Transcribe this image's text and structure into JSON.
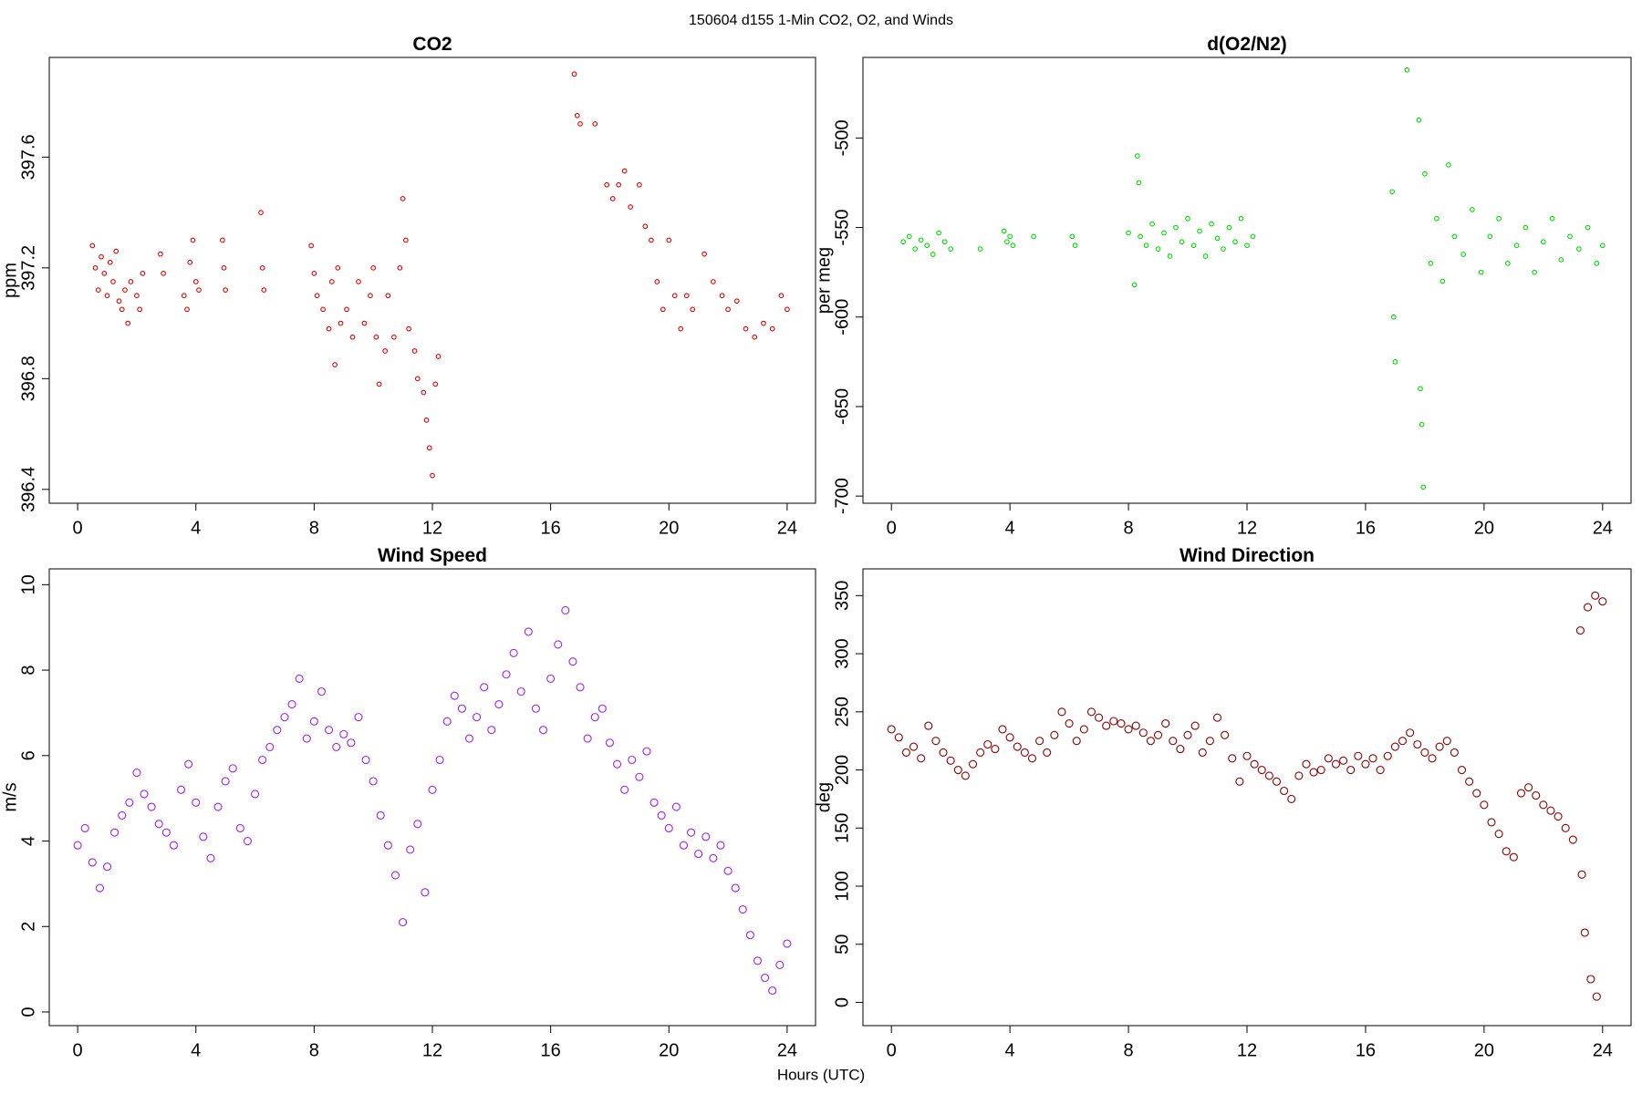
{
  "title": "150604   d155   1-Min CO2, O2, and Winds",
  "xlabel": "Hours (UTC)",
  "chart_data": [
    {
      "type": "scatter",
      "title": "CO2",
      "ylabel": "ppm",
      "color": "#e00000",
      "x": [
        0.5,
        0.6,
        0.7,
        0.8,
        0.9,
        1.0,
        1.1,
        1.2,
        1.3,
        1.4,
        1.5,
        1.6,
        1.7,
        1.8,
        2.0,
        2.1,
        2.2,
        2.8,
        2.9,
        3.6,
        3.7,
        3.8,
        3.9,
        4.0,
        4.1,
        4.9,
        4.95,
        5.0,
        6.2,
        6.25,
        6.3,
        7.9,
        8.0,
        8.1,
        8.3,
        8.5,
        8.6,
        8.7,
        8.8,
        8.9,
        9.1,
        9.3,
        9.5,
        9.7,
        9.9,
        10.0,
        10.1,
        10.2,
        10.4,
        10.5,
        10.7,
        10.9,
        11.0,
        11.1,
        11.2,
        11.4,
        11.5,
        11.7,
        11.8,
        11.9,
        12.0,
        12.1,
        12.2,
        16.8,
        16.9,
        17.0,
        17.5,
        17.9,
        18.1,
        18.3,
        18.5,
        18.7,
        19.0,
        19.2,
        19.4,
        19.6,
        19.8,
        20.0,
        20.2,
        20.4,
        20.6,
        20.8,
        21.2,
        21.5,
        21.8,
        22.0,
        22.3,
        22.6,
        22.9,
        23.2,
        23.5,
        23.8,
        24.0
      ],
      "values": [
        397.28,
        397.2,
        397.12,
        397.24,
        397.18,
        397.1,
        397.22,
        397.15,
        397.26,
        397.08,
        397.05,
        397.12,
        397.0,
        397.15,
        397.1,
        397.05,
        397.18,
        397.25,
        397.18,
        397.1,
        397.05,
        397.22,
        397.3,
        397.15,
        397.12,
        397.3,
        397.2,
        397.12,
        397.4,
        397.2,
        397.12,
        397.28,
        397.18,
        397.1,
        397.05,
        396.98,
        397.15,
        396.85,
        397.2,
        397.0,
        397.05,
        396.95,
        397.15,
        397.0,
        397.1,
        397.2,
        396.95,
        396.78,
        396.9,
        397.1,
        396.95,
        397.2,
        397.45,
        397.3,
        396.98,
        396.9,
        396.8,
        396.75,
        396.65,
        396.55,
        396.45,
        396.78,
        396.88,
        397.9,
        397.75,
        397.72,
        397.72,
        397.5,
        397.45,
        397.5,
        397.55,
        397.42,
        397.5,
        397.35,
        397.3,
        397.15,
        397.05,
        397.3,
        397.1,
        396.98,
        397.1,
        397.05,
        397.25,
        397.15,
        397.1,
        397.05,
        397.08,
        396.98,
        396.95,
        397.0,
        396.98,
        397.1,
        397.05
      ],
      "xlim": [
        -0.96,
        24.96
      ],
      "xticks": [
        0,
        4,
        8,
        12,
        16,
        20,
        24
      ],
      "ylim": [
        396.35,
        397.96
      ],
      "yticks": [
        396.4,
        396.8,
        397.2,
        397.6
      ]
    },
    {
      "type": "scatter",
      "title": "d(O2/N2)",
      "ylabel": "per meg",
      "color": "#00dd00",
      "x": [
        0.4,
        0.6,
        0.8,
        1.0,
        1.2,
        1.4,
        1.6,
        1.8,
        2.0,
        3.0,
        3.8,
        3.9,
        4.0,
        4.1,
        4.8,
        6.1,
        6.2,
        8.0,
        8.2,
        8.3,
        8.35,
        8.4,
        8.6,
        8.8,
        9.0,
        9.2,
        9.4,
        9.6,
        9.8,
        10.0,
        10.2,
        10.4,
        10.6,
        10.8,
        11.0,
        11.2,
        11.4,
        11.6,
        11.8,
        12.0,
        12.2,
        16.9,
        16.95,
        17.0,
        17.4,
        17.8,
        17.85,
        17.9,
        17.95,
        18.0,
        18.2,
        18.4,
        18.6,
        18.8,
        19.0,
        19.3,
        19.6,
        19.9,
        20.2,
        20.5,
        20.8,
        21.1,
        21.4,
        21.7,
        22.0,
        22.3,
        22.6,
        22.9,
        23.2,
        23.5,
        23.8,
        24.0
      ],
      "values": [
        -558,
        -555,
        -562,
        -557,
        -560,
        -565,
        -553,
        -558,
        -562,
        -562,
        -552,
        -558,
        -555,
        -560,
        -555,
        -555,
        -560,
        -553,
        -582,
        -510,
        -525,
        -555,
        -560,
        -548,
        -562,
        -553,
        -566,
        -550,
        -558,
        -545,
        -560,
        -552,
        -566,
        -548,
        -556,
        -562,
        -550,
        -558,
        -545,
        -560,
        -555,
        -530,
        -600,
        -625,
        -462,
        -490,
        -640,
        -660,
        -695,
        -520,
        -570,
        -545,
        -580,
        -515,
        -555,
        -565,
        -540,
        -575,
        -555,
        -545,
        -570,
        -560,
        -550,
        -575,
        -558,
        -545,
        -568,
        -555,
        -562,
        -550,
        -570,
        -560
      ],
      "xlim": [
        -0.96,
        24.96
      ],
      "xticks": [
        0,
        4,
        8,
        12,
        16,
        20,
        24
      ],
      "ylim": [
        -704,
        -455
      ],
      "yticks": [
        -700,
        -650,
        -600,
        -550,
        -500
      ]
    },
    {
      "type": "scatter",
      "title": "Wind Speed",
      "ylabel": "m/s",
      "color": "#a020f0",
      "x": [
        0,
        0.25,
        0.5,
        0.75,
        1,
        1.25,
        1.5,
        1.75,
        2,
        2.25,
        2.5,
        2.75,
        3,
        3.25,
        3.5,
        3.75,
        4,
        4.25,
        4.5,
        4.75,
        5,
        5.25,
        5.5,
        5.75,
        6,
        6.25,
        6.5,
        6.75,
        7,
        7.25,
        7.5,
        7.75,
        8,
        8.25,
        8.5,
        8.75,
        9,
        9.25,
        9.5,
        9.75,
        10,
        10.25,
        10.5,
        10.75,
        11,
        11.25,
        11.5,
        11.75,
        12,
        12.25,
        12.5,
        12.75,
        13,
        13.25,
        13.5,
        13.75,
        14,
        14.25,
        14.5,
        14.75,
        15,
        15.25,
        15.5,
        15.75,
        16,
        16.25,
        16.5,
        16.75,
        17,
        17.25,
        17.5,
        17.75,
        18,
        18.25,
        18.5,
        18.75,
        19,
        19.25,
        19.5,
        19.75,
        20,
        20.25,
        20.5,
        20.75,
        21,
        21.25,
        21.5,
        21.75,
        22,
        22.25,
        22.5,
        22.75,
        23,
        23.25,
        23.5,
        23.75,
        24
      ],
      "values": [
        3.9,
        4.3,
        3.5,
        2.9,
        3.4,
        4.2,
        4.6,
        4.9,
        5.6,
        5.1,
        4.8,
        4.4,
        4.2,
        3.9,
        5.2,
        5.8,
        4.9,
        4.1,
        3.6,
        4.8,
        5.4,
        5.7,
        4.3,
        4.0,
        5.1,
        5.9,
        6.2,
        6.6,
        6.9,
        7.2,
        7.8,
        6.4,
        6.8,
        7.5,
        6.6,
        6.2,
        6.5,
        6.3,
        6.9,
        5.9,
        5.4,
        4.6,
        3.9,
        3.2,
        2.1,
        3.8,
        4.4,
        2.8,
        5.2,
        5.9,
        6.8,
        7.4,
        7.1,
        6.4,
        6.9,
        7.6,
        6.6,
        7.2,
        7.9,
        8.4,
        7.5,
        8.9,
        7.1,
        6.6,
        7.8,
        8.6,
        9.4,
        8.2,
        7.6,
        6.4,
        6.9,
        7.1,
        6.3,
        5.8,
        5.2,
        5.9,
        5.5,
        6.1,
        4.9,
        4.6,
        4.3,
        4.8,
        3.9,
        4.2,
        3.7,
        4.1,
        3.6,
        3.9,
        3.3,
        2.9,
        2.4,
        1.8,
        1.2,
        0.8,
        0.5,
        1.1,
        1.6
      ],
      "xlim": [
        -0.96,
        24.96
      ],
      "xticks": [
        0,
        4,
        8,
        12,
        16,
        20,
        24
      ],
      "ylim": [
        -0.32,
        10.37
      ],
      "yticks": [
        0,
        2,
        4,
        6,
        8,
        10
      ]
    },
    {
      "type": "scatter",
      "title": "Wind Direction",
      "ylabel": "deg",
      "color": "#8b0000",
      "x": [
        0,
        0.25,
        0.5,
        0.75,
        1,
        1.25,
        1.5,
        1.75,
        2,
        2.25,
        2.5,
        2.75,
        3,
        3.25,
        3.5,
        3.75,
        4,
        4.25,
        4.5,
        4.75,
        5,
        5.25,
        5.5,
        5.75,
        6,
        6.25,
        6.5,
        6.75,
        7,
        7.25,
        7.5,
        7.75,
        8,
        8.25,
        8.5,
        8.75,
        9,
        9.25,
        9.5,
        9.75,
        10,
        10.25,
        10.5,
        10.75,
        11,
        11.25,
        11.5,
        11.75,
        12,
        12.25,
        12.5,
        12.75,
        13,
        13.25,
        13.5,
        13.75,
        14,
        14.25,
        14.5,
        14.75,
        15,
        15.25,
        15.5,
        15.75,
        16,
        16.25,
        16.5,
        16.75,
        17,
        17.25,
        17.5,
        17.75,
        18,
        18.25,
        18.5,
        18.75,
        19,
        19.25,
        19.5,
        19.75,
        20,
        20.25,
        20.5,
        20.75,
        21,
        21.25,
        21.5,
        21.75,
        22,
        22.25,
        22.5,
        22.75,
        23,
        23.25,
        23.5,
        23.75,
        24,
        23.3,
        23.4,
        23.6,
        23.8
      ],
      "values": [
        235,
        228,
        215,
        220,
        210,
        238,
        225,
        215,
        208,
        200,
        195,
        205,
        215,
        222,
        218,
        235,
        228,
        220,
        215,
        210,
        225,
        215,
        230,
        250,
        240,
        225,
        235,
        250,
        245,
        238,
        242,
        240,
        235,
        238,
        232,
        225,
        230,
        240,
        225,
        218,
        230,
        238,
        215,
        225,
        245,
        230,
        210,
        190,
        212,
        205,
        200,
        195,
        190,
        182,
        175,
        195,
        205,
        198,
        200,
        210,
        205,
        208,
        200,
        212,
        205,
        210,
        200,
        212,
        220,
        225,
        232,
        222,
        215,
        210,
        220,
        225,
        215,
        200,
        190,
        180,
        170,
        155,
        145,
        130,
        125,
        180,
        185,
        178,
        170,
        165,
        160,
        150,
        140,
        320,
        340,
        350,
        345,
        110,
        60,
        20,
        5
      ],
      "xlim": [
        -0.96,
        24.96
      ],
      "xticks": [
        0,
        4,
        8,
        12,
        16,
        20,
        24
      ],
      "ylim": [
        -20,
        373
      ],
      "yticks": [
        0,
        50,
        100,
        150,
        200,
        250,
        300,
        350
      ]
    }
  ]
}
